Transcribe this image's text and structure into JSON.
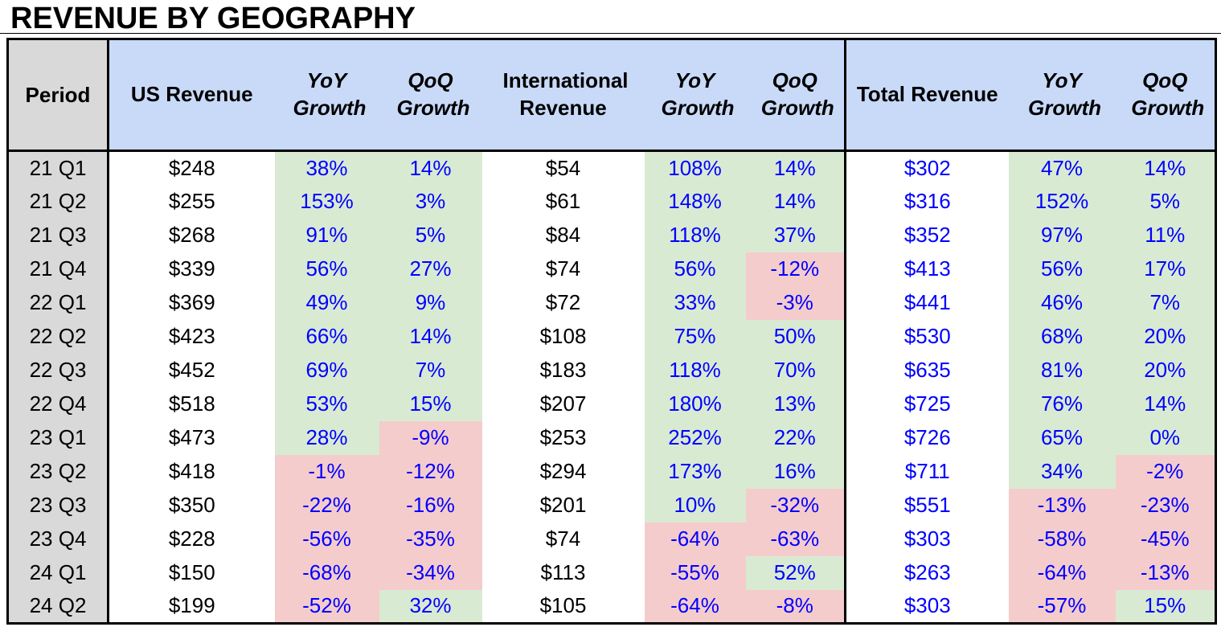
{
  "title": "REVENUE BY GEOGRAPHY",
  "colors": {
    "header_fill": "#c9daf8",
    "period_fill": "#d9d9d9",
    "positive_fill": "#d9ead3",
    "negative_fill": "#f4cccc",
    "growth_text": "#0000ff",
    "revenue_text": "#000000",
    "total_revenue_text": "#0000ff"
  },
  "table": {
    "header": {
      "period_label": "Period",
      "us": {
        "revenue_label": "US Revenue",
        "yoy_label": "YoY Growth",
        "qoq_label": "QoQ Growth"
      },
      "international": {
        "revenue_label": "International Revenue",
        "yoy_label": "YoY Growth",
        "qoq_label": "QoQ Growth"
      },
      "total": {
        "revenue_label": "Total Revenue",
        "yoy_label": "YoY Growth",
        "qoq_label": "QoQ Growth"
      }
    },
    "rows": [
      {
        "period": "21 Q1",
        "us_revenue": "$248",
        "us_yoy": "38%",
        "us_qoq": "14%",
        "international_revenue": "$54",
        "international_yoy": "108%",
        "international_qoq": "14%",
        "total_revenue": "$302",
        "total_yoy": "47%",
        "total_qoq": "14%"
      },
      {
        "period": "21 Q2",
        "us_revenue": "$255",
        "us_yoy": "153%",
        "us_qoq": "3%",
        "international_revenue": "$61",
        "international_yoy": "148%",
        "international_qoq": "14%",
        "total_revenue": "$316",
        "total_yoy": "152%",
        "total_qoq": "5%"
      },
      {
        "period": "21 Q3",
        "us_revenue": "$268",
        "us_yoy": "91%",
        "us_qoq": "5%",
        "international_revenue": "$84",
        "international_yoy": "118%",
        "international_qoq": "37%",
        "total_revenue": "$352",
        "total_yoy": "97%",
        "total_qoq": "11%"
      },
      {
        "period": "21 Q4",
        "us_revenue": "$339",
        "us_yoy": "56%",
        "us_qoq": "27%",
        "international_revenue": "$74",
        "international_yoy": "56%",
        "international_qoq": "-12%",
        "total_revenue": "$413",
        "total_yoy": "56%",
        "total_qoq": "17%"
      },
      {
        "period": "22 Q1",
        "us_revenue": "$369",
        "us_yoy": "49%",
        "us_qoq": "9%",
        "international_revenue": "$72",
        "international_yoy": "33%",
        "international_qoq": "-3%",
        "total_revenue": "$441",
        "total_yoy": "46%",
        "total_qoq": "7%"
      },
      {
        "period": "22 Q2",
        "us_revenue": "$423",
        "us_yoy": "66%",
        "us_qoq": "14%",
        "international_revenue": "$108",
        "international_yoy": "75%",
        "international_qoq": "50%",
        "total_revenue": "$530",
        "total_yoy": "68%",
        "total_qoq": "20%"
      },
      {
        "period": "22 Q3",
        "us_revenue": "$452",
        "us_yoy": "69%",
        "us_qoq": "7%",
        "international_revenue": "$183",
        "international_yoy": "118%",
        "international_qoq": "70%",
        "total_revenue": "$635",
        "total_yoy": "81%",
        "total_qoq": "20%"
      },
      {
        "period": "22 Q4",
        "us_revenue": "$518",
        "us_yoy": "53%",
        "us_qoq": "15%",
        "international_revenue": "$207",
        "international_yoy": "180%",
        "international_qoq": "13%",
        "total_revenue": "$725",
        "total_yoy": "76%",
        "total_qoq": "14%"
      },
      {
        "period": "23 Q1",
        "us_revenue": "$473",
        "us_yoy": "28%",
        "us_qoq": "-9%",
        "international_revenue": "$253",
        "international_yoy": "252%",
        "international_qoq": "22%",
        "total_revenue": "$726",
        "total_yoy": "65%",
        "total_qoq": "0%"
      },
      {
        "period": "23 Q2",
        "us_revenue": "$418",
        "us_yoy": "-1%",
        "us_qoq": "-12%",
        "international_revenue": "$294",
        "international_yoy": "173%",
        "international_qoq": "16%",
        "total_revenue": "$711",
        "total_yoy": "34%",
        "total_qoq": "-2%"
      },
      {
        "period": "23 Q3",
        "us_revenue": "$350",
        "us_yoy": "-22%",
        "us_qoq": "-16%",
        "international_revenue": "$201",
        "international_yoy": "10%",
        "international_qoq": "-32%",
        "total_revenue": "$551",
        "total_yoy": "-13%",
        "total_qoq": "-23%"
      },
      {
        "period": "23 Q4",
        "us_revenue": "$228",
        "us_yoy": "-56%",
        "us_qoq": "-35%",
        "international_revenue": "$74",
        "international_yoy": "-64%",
        "international_qoq": "-63%",
        "total_revenue": "$303",
        "total_yoy": "-58%",
        "total_qoq": "-45%"
      },
      {
        "period": "24 Q1",
        "us_revenue": "$150",
        "us_yoy": "-68%",
        "us_qoq": "-34%",
        "international_revenue": "$113",
        "international_yoy": "-55%",
        "international_qoq": "52%",
        "total_revenue": "$263",
        "total_yoy": "-64%",
        "total_qoq": "-13%"
      },
      {
        "period": "24 Q2",
        "us_revenue": "$199",
        "us_yoy": "-52%",
        "us_qoq": "32%",
        "international_revenue": "$105",
        "international_yoy": "-64%",
        "international_qoq": "-8%",
        "total_revenue": "$303",
        "total_yoy": "-57%",
        "total_qoq": "15%"
      }
    ]
  }
}
